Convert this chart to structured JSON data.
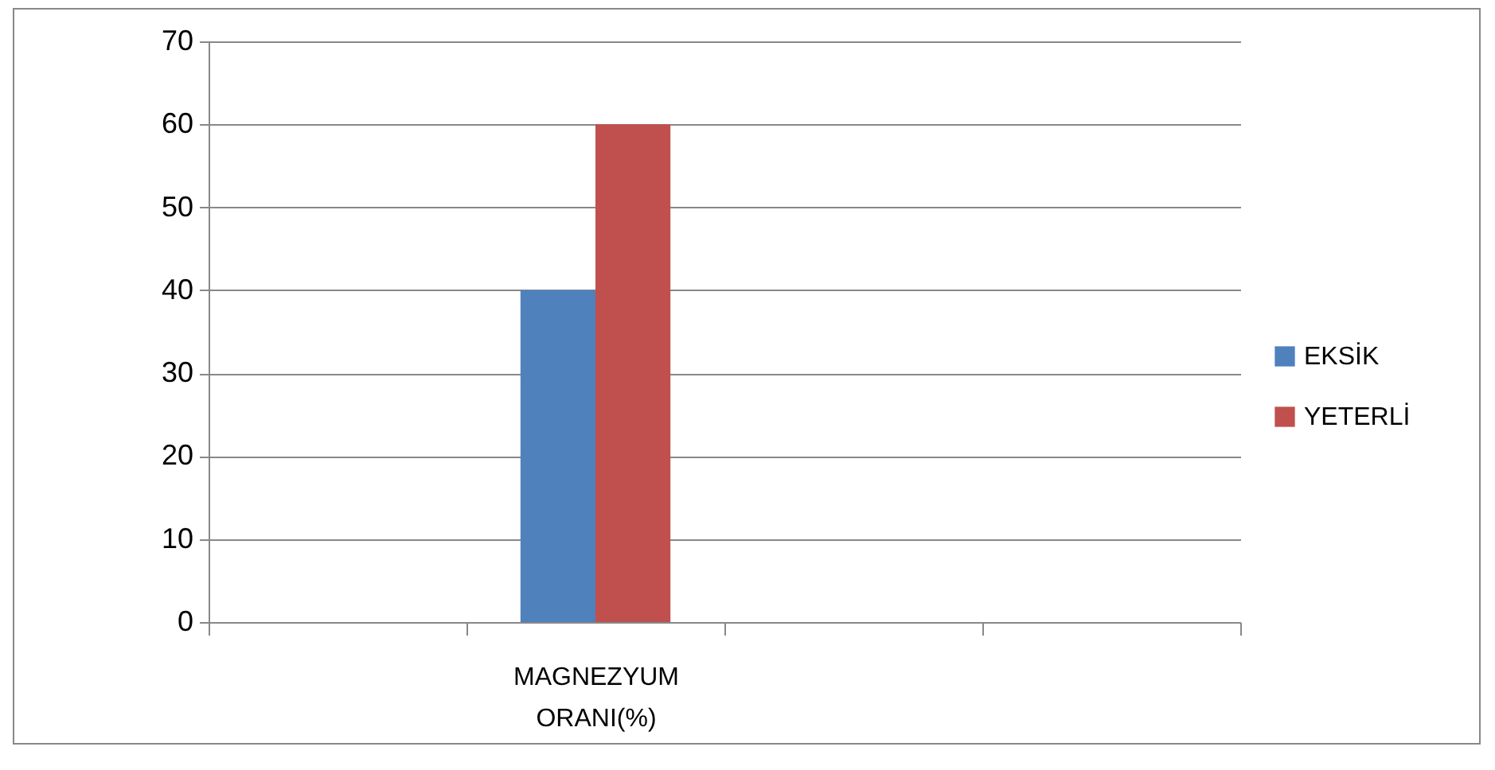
{
  "chart_data": {
    "type": "bar",
    "categories": [
      null,
      "MAGNEZYUM ORANI(%)",
      null,
      null
    ],
    "series": [
      {
        "name": "EKSİK",
        "color": "#4f81bd",
        "values": [
          null,
          40,
          null,
          null
        ]
      },
      {
        "name": "YETERLİ",
        "color": "#c0504d",
        "values": [
          null,
          60,
          null,
          null
        ]
      }
    ],
    "ylim": [
      0,
      70
    ],
    "yticks": [
      0,
      10,
      20,
      30,
      40,
      50,
      60,
      70
    ],
    "grid": "y",
    "legend": "right"
  }
}
